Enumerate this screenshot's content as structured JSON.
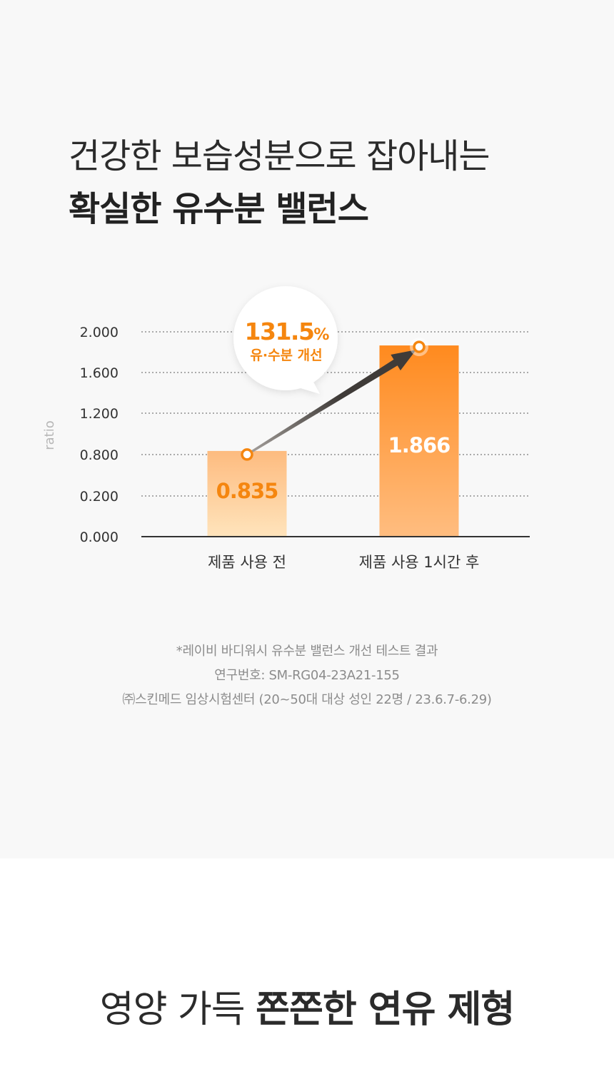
{
  "headline": {
    "line1": "건강한 보습성분으로 잡아내는",
    "line2": "확실한 유수분 밸런스"
  },
  "chart_data": {
    "type": "bar",
    "ylabel": "ratio",
    "y_ticks": [
      "0.000",
      "0.200",
      "0.800",
      "1.200",
      "1.600",
      "2.000"
    ],
    "categories": [
      "제품 사용 전",
      "제품 사용 1시간 후"
    ],
    "values": [
      0.835,
      1.866
    ],
    "value_labels": [
      "0.835",
      "1.866"
    ],
    "grid": true,
    "callout": {
      "value": "131.5",
      "unit": "%",
      "label": "유·수분 개선"
    },
    "colors": {
      "bar_before_top": "#fdbb7f",
      "bar_before_bottom": "#ffe4bc",
      "bar_after_top": "#ff8a1e",
      "bar_after_bottom": "#ffbd80",
      "accent": "#f5860f",
      "arrow": "#3f3b38"
    }
  },
  "notes": [
    "*레이비 바디워시 유수분 밸런스 개선 테스트 결과",
    "연구번호: SM-RG04-23A21-155",
    "㈜스킨메드 임상시험센터 (20~50대 대상 성인 22명 / 23.6.7-6.29)"
  ],
  "bottom_title": {
    "light": "영양 가득 ",
    "bold": "쫀쫀한 연유 제형"
  }
}
